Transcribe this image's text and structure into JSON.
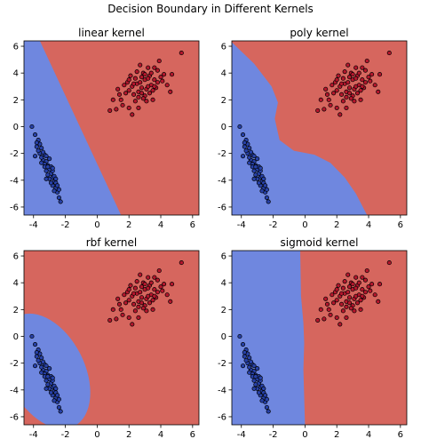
{
  "figure": {
    "suptitle": "Decision Boundary in Different Kernels"
  },
  "colors": {
    "class_blue": "#6f87df",
    "class_red": "#d6665e",
    "point_blue": "#2741a8",
    "point_red": "#b3162c",
    "edge": "#000000"
  },
  "chart_data": [
    {
      "type": "scatter",
      "title": "linear kernel",
      "xlim": [
        -4.6,
        6.4
      ],
      "ylim": [
        -6.6,
        6.4
      ],
      "xticks": [
        "-4",
        "-2",
        "0",
        "2",
        "4",
        "6"
      ],
      "yticks": [
        "6",
        "4",
        "2",
        "0",
        "-2",
        "-4",
        "-6"
      ],
      "boundary": "linear",
      "boundary_points": [
        [
          -3.6,
          6.4
        ],
        [
          1.5,
          -6.6
        ]
      ]
    },
    {
      "type": "scatter",
      "title": "poly kernel",
      "xlim": [
        -4.6,
        6.4
      ],
      "ylim": [
        -6.6,
        6.4
      ],
      "xticks": [
        "-4",
        "-2",
        "0",
        "2",
        "4",
        "6"
      ],
      "yticks": [
        "6",
        "4",
        "2",
        "0",
        "-2",
        "-4",
        "-6"
      ],
      "boundary": "poly",
      "boundary_points": [
        [
          -4.6,
          6.3
        ],
        [
          -3.2,
          4.7
        ],
        [
          -2.1,
          3.0
        ],
        [
          -1.7,
          1.8
        ],
        [
          -1.9,
          0.6
        ],
        [
          -1.6,
          -1.0
        ],
        [
          -0.7,
          -1.8
        ],
        [
          0.6,
          -2.1
        ],
        [
          1.6,
          -2.7
        ],
        [
          2.5,
          -3.8
        ],
        [
          3.2,
          -5.0
        ],
        [
          3.9,
          -6.6
        ]
      ]
    },
    {
      "type": "scatter",
      "title": "rbf kernel",
      "xlim": [
        -4.6,
        6.4
      ],
      "ylim": [
        -6.6,
        6.4
      ],
      "xticks": [
        "-4",
        "-2",
        "0",
        "2",
        "4",
        "6"
      ],
      "yticks": [
        "6",
        "4",
        "2",
        "0",
        "-2",
        "-4",
        "-6"
      ],
      "boundary": "rbf",
      "boundary_points": [
        [
          -3.2,
          -2.6
        ],
        [
          2.4,
          4.6
        ],
        -27
      ]
    },
    {
      "type": "scatter",
      "title": "sigmoid kernel",
      "xlim": [
        -4.6,
        6.4
      ],
      "ylim": [
        -6.6,
        6.4
      ],
      "xticks": [
        "-4",
        "-2",
        "0",
        "2",
        "4",
        "6"
      ],
      "yticks": [
        "6",
        "4",
        "2",
        "0",
        "-2",
        "-4",
        "-6"
      ],
      "boundary": "sigmoid",
      "boundary_points": [
        [
          -0.3,
          6.4
        ],
        [
          -0.25,
          3.0
        ],
        [
          -0.1,
          1.0
        ],
        [
          -0.05,
          -0.5
        ],
        [
          -0.1,
          -2.5
        ],
        [
          0.0,
          -6.6
        ]
      ]
    }
  ],
  "scatter_points": {
    "red": [
      [
        2.5,
        3.2
      ],
      [
        3.0,
        3.5
      ],
      [
        2.8,
        2.9
      ],
      [
        3.3,
        3.8
      ],
      [
        2.2,
        3.0
      ],
      [
        2.6,
        2.6
      ],
      [
        3.4,
        3.1
      ],
      [
        2.9,
        4.0
      ],
      [
        3.6,
        3.5
      ],
      [
        2.0,
        2.7
      ],
      [
        3.1,
        2.8
      ],
      [
        2.4,
        3.6
      ],
      [
        3.8,
        4.2
      ],
      [
        2.7,
        3.3
      ],
      [
        3.2,
        3.0
      ],
      [
        1.9,
        3.3
      ],
      [
        3.5,
        2.7
      ],
      [
        2.3,
        2.4
      ],
      [
        4.0,
        3.7
      ],
      [
        2.8,
        3.7
      ],
      [
        3.0,
        2.3
      ],
      [
        3.6,
        4.4
      ],
      [
        2.1,
        3.8
      ],
      [
        1.8,
        2.5
      ],
      [
        4.2,
        3.9
      ],
      [
        3.3,
        2.5
      ],
      [
        2.5,
        4.1
      ],
      [
        1.5,
        2.0
      ],
      [
        1.3,
        2.8
      ],
      [
        0.8,
        1.2
      ],
      [
        1.0,
        2.0
      ],
      [
        1.6,
        1.6
      ],
      [
        2.0,
        1.4
      ],
      [
        2.4,
        1.9
      ],
      [
        1.2,
        1.3
      ],
      [
        2.2,
        0.9
      ],
      [
        2.6,
        1.4
      ],
      [
        3.1,
        1.9
      ],
      [
        3.7,
        2.9
      ],
      [
        4.4,
        3.1
      ],
      [
        4.7,
        3.9
      ],
      [
        3.9,
        4.9
      ],
      [
        3.2,
        4.4
      ],
      [
        2.7,
        4.6
      ],
      [
        5.3,
        5.5
      ],
      [
        4.6,
        2.6
      ],
      [
        3.5,
        2.0
      ],
      [
        1.7,
        3.1
      ],
      [
        2.9,
        2.1
      ],
      [
        3.8,
        3.3
      ],
      [
        2.3,
        3.2
      ],
      [
        3.0,
        3.9
      ],
      [
        2.6,
        2.2
      ],
      [
        3.4,
        4.0
      ],
      [
        4.1,
        3.4
      ],
      [
        2.0,
        3.5
      ],
      [
        1.4,
        2.4
      ],
      [
        3.6,
        3.0
      ],
      [
        2.8,
        2.5
      ],
      [
        3.2,
        3.6
      ]
    ],
    "blue": [
      [
        -4.1,
        0.0
      ],
      [
        -3.9,
        -0.6
      ],
      [
        -3.7,
        -1.0
      ],
      [
        -3.8,
        -1.5
      ],
      [
        -3.5,
        -1.6
      ],
      [
        -3.6,
        -2.0
      ],
      [
        -3.3,
        -2.1
      ],
      [
        -3.4,
        -2.5
      ],
      [
        -3.2,
        -2.6
      ],
      [
        -3.1,
        -2.9
      ],
      [
        -3.0,
        -3.2
      ],
      [
        -3.2,
        -3.3
      ],
      [
        -2.9,
        -3.5
      ],
      [
        -2.8,
        -3.8
      ],
      [
        -3.0,
        -3.9
      ],
      [
        -2.7,
        -4.1
      ],
      [
        -2.8,
        -4.4
      ],
      [
        -2.6,
        -4.6
      ],
      [
        -2.5,
        -4.9
      ],
      [
        -2.4,
        -5.3
      ],
      [
        -2.3,
        -5.6
      ],
      [
        -3.5,
        -2.3
      ],
      [
        -3.7,
        -1.8
      ],
      [
        -3.3,
        -2.8
      ],
      [
        -2.9,
        -3.0
      ],
      [
        -3.1,
        -3.6
      ],
      [
        -2.7,
        -3.7
      ],
      [
        -3.4,
        -1.9
      ],
      [
        -3.6,
        -1.3
      ],
      [
        -3.0,
        -2.4
      ],
      [
        -2.6,
        -4.2
      ],
      [
        -2.9,
        -4.2
      ],
      [
        -2.5,
        -4.4
      ],
      [
        -3.2,
        -2.2
      ],
      [
        -2.8,
        -3.3
      ],
      [
        -3.3,
        -3.0
      ],
      [
        -3.5,
        -2.7
      ],
      [
        -2.7,
        -4.8
      ],
      [
        -2.4,
        -4.7
      ],
      [
        -3.8,
        -1.2
      ],
      [
        -3.9,
        -2.2
      ],
      [
        -3.1,
        -3.0
      ],
      [
        -2.8,
        -3.1
      ],
      [
        -3.2,
        -3.9
      ],
      [
        -2.6,
        -3.9
      ]
    ]
  }
}
